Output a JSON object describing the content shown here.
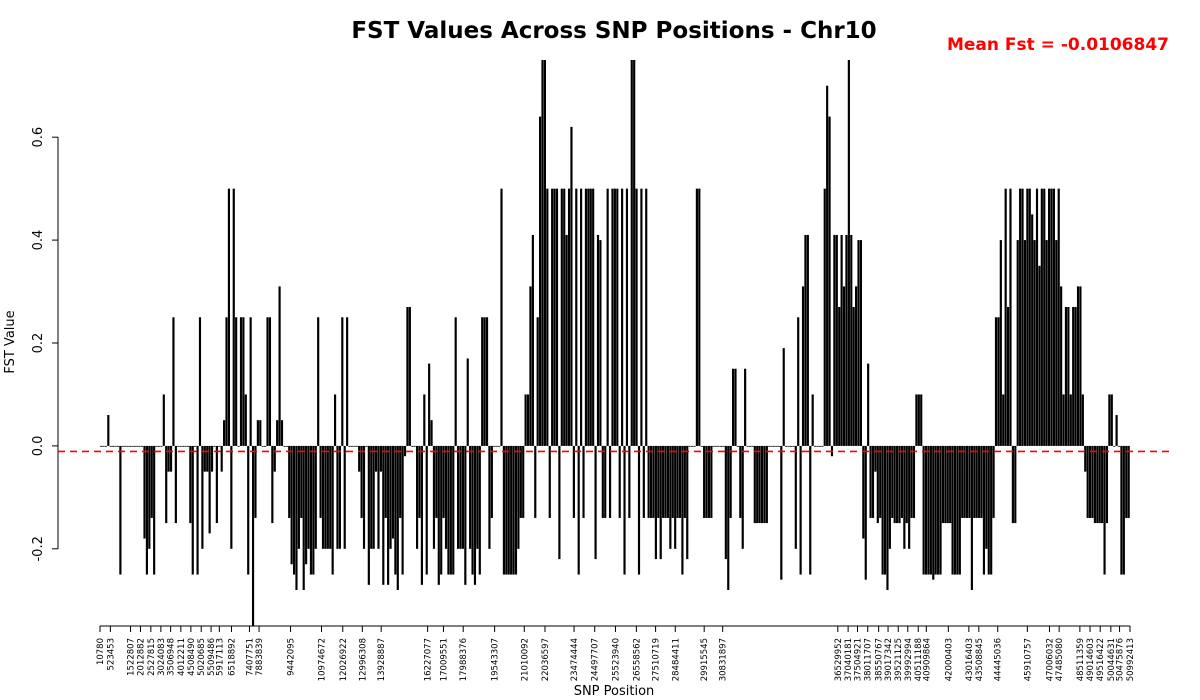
{
  "chart_data": {
    "type": "bar",
    "title": "FST Values Across SNP Positions - Chr10",
    "xlabel": "SNP Position",
    "ylabel": "FST Value",
    "ylim": [
      -0.35,
      0.75
    ],
    "yticks": [
      -0.2,
      0.0,
      0.2,
      0.4,
      0.6
    ],
    "ytick_labels": [
      "-0.2",
      "0.0",
      "0.2",
      "0.4",
      "0.6"
    ],
    "mean_fst": -0.0106847,
    "mean_label": "Mean Fst = -0.0106847",
    "mean_line_color": "#ff0000",
    "bar_color": "#000000",
    "grid": false,
    "xticks": [
      10780,
      523453,
      1522807,
      2012882,
      2527815,
      3024083,
      3506948,
      4012211,
      4508490,
      5020685,
      5509486,
      5917113,
      6518892,
      7407751,
      7883839,
      9442095,
      10974672,
      12026922,
      12996308,
      13928887,
      16227077,
      17009551,
      17988376,
      19543307,
      21010092,
      22036597,
      23474444,
      24497707,
      25523940,
      26558562,
      27510719,
      28484411,
      29915545,
      30831897,
      36529952,
      37040181,
      37504921,
      38011707,
      38550767,
      39017342,
      39521125,
      39992994,
      40511188,
      40909864,
      42000403,
      43016403,
      43508845,
      44445036,
      45910757,
      47006032,
      47485080,
      48511359,
      49014603,
      49516422,
      50044631,
      50475876,
      50992413
    ],
    "xtick_labels": [
      "10780",
      "523453",
      "1522807",
      "2012882",
      "2527815",
      "3024083",
      "3506948",
      "4012211",
      "4508490",
      "5020685",
      "5509486",
      "5917113",
      "6518892",
      "7407751",
      "7883839",
      "9442095",
      "10974672",
      "12026922",
      "12996308",
      "13928887",
      "16227077",
      "17009551",
      "17988376",
      "19543307",
      "21010092",
      "22036597",
      "23474444",
      "24497707",
      "25523940",
      "26558562",
      "27510719",
      "28484411",
      "29915545",
      "30831897",
      "36529952",
      "37040181",
      "37504921",
      "38011707",
      "38550767",
      "39017342",
      "39521125",
      "39992994",
      "40511188",
      "40909864",
      "42000403",
      "43016403",
      "43508845",
      "44445036",
      "45910757",
      "47006032",
      "47485080",
      "48511359",
      "49014603",
      "49516422",
      "50044631",
      "50475876",
      "50992413"
    ],
    "values": [
      0.0,
      0.0,
      0.0,
      0.06,
      0.0,
      0.0,
      0.0,
      0.0,
      -0.25,
      0.0,
      0.0,
      0.0,
      0.0,
      0.0,
      0.0,
      0.0,
      0.0,
      0.0,
      -0.18,
      -0.25,
      -0.2,
      -0.14,
      -0.25,
      0.0,
      0.0,
      0.0,
      0.1,
      -0.15,
      -0.05,
      -0.05,
      0.25,
      -0.15,
      0.0,
      0.0,
      0.0,
      0.0,
      0.0,
      -0.15,
      -0.25,
      0.0,
      -0.25,
      0.25,
      -0.2,
      -0.05,
      -0.05,
      -0.17,
      -0.05,
      0.0,
      -0.15,
      0.0,
      -0.05,
      0.05,
      0.25,
      0.5,
      -0.2,
      0.5,
      0.25,
      0.0,
      0.25,
      0.25,
      0.1,
      -0.25,
      0.25,
      -0.35,
      -0.14,
      0.05,
      0.05,
      0.0,
      0.0,
      0.25,
      0.25,
      -0.15,
      -0.05,
      0.05,
      0.31,
      0.05,
      0.0,
      0.0,
      -0.14,
      -0.23,
      -0.25,
      -0.28,
      -0.2,
      -0.14,
      -0.28,
      -0.23,
      -0.2,
      -0.25,
      -0.25,
      -0.2,
      0.25,
      -0.14,
      -0.2,
      -0.2,
      -0.2,
      -0.2,
      -0.25,
      0.1,
      -0.2,
      -0.2,
      0.25,
      -0.2,
      0.25,
      0.0,
      0.0,
      0.0,
      0.0,
      -0.05,
      -0.14,
      -0.2,
      0.0,
      -0.27,
      -0.2,
      -0.2,
      -0.05,
      -0.2,
      -0.05,
      -0.27,
      -0.14,
      -0.27,
      -0.2,
      -0.18,
      -0.25,
      -0.28,
      -0.14,
      -0.25,
      -0.02,
      0.27,
      0.27,
      0.0,
      0.0,
      -0.2,
      -0.14,
      -0.27,
      0.1,
      -0.25,
      0.16,
      0.05,
      -0.2,
      -0.14,
      -0.27,
      -0.25,
      -0.14,
      -0.2,
      -0.25,
      -0.25,
      -0.25,
      0.25,
      -0.2,
      -0.2,
      -0.2,
      -0.27,
      0.17,
      -0.2,
      -0.25,
      -0.27,
      -0.2,
      -0.25,
      0.25,
      0.25,
      0.25,
      -0.2,
      -0.14,
      0.0,
      0.0,
      0.0,
      0.5,
      -0.25,
      -0.25,
      -0.25,
      -0.25,
      -0.25,
      -0.25,
      -0.2,
      -0.14,
      -0.14,
      0.1,
      0.1,
      0.31,
      0.41,
      -0.14,
      0.25,
      0.64,
      0.75,
      0.75,
      0.5,
      -0.14,
      0.5,
      0.5,
      0.5,
      -0.22,
      0.5,
      0.5,
      0.41,
      0.5,
      0.62,
      -0.14,
      0.5,
      -0.25,
      0.5,
      -0.14,
      0.5,
      0.5,
      0.5,
      0.5,
      -0.22,
      0.41,
      0.4,
      -0.14,
      -0.14,
      0.5,
      -0.14,
      0.5,
      0.5,
      0.5,
      -0.14,
      0.5,
      -0.25,
      0.5,
      -0.14,
      0.75,
      0.75,
      0.5,
      -0.25,
      0.5,
      -0.14,
      0.5,
      -0.14,
      -0.14,
      -0.14,
      -0.22,
      -0.14,
      -0.22,
      -0.14,
      -0.14,
      -0.14,
      -0.2,
      -0.14,
      -0.2,
      -0.14,
      -0.14,
      -0.25,
      -0.14,
      -0.22,
      0.0,
      0.0,
      0.0,
      0.5,
      0.5,
      0.0,
      -0.14,
      -0.14,
      -0.14,
      -0.14,
      0.0,
      0.0,
      0.0,
      0.0,
      0.0,
      -0.22,
      -0.28,
      -0.14,
      0.15,
      0.15,
      0.0,
      -0.14,
      -0.2,
      0.15,
      0.0,
      0.0,
      0.0,
      -0.15,
      -0.15,
      -0.15,
      -0.15,
      -0.15,
      -0.15,
      0.0,
      0.0,
      0.0,
      0.0,
      0.0,
      -0.26,
      0.19,
      0.0,
      0.0,
      0.0,
      0.0,
      -0.2,
      0.25,
      -0.25,
      0.31,
      0.41,
      0.41,
      -0.25,
      0.1,
      0.0,
      0.0,
      0.0,
      0.0,
      0.5,
      0.7,
      0.64,
      -0.02,
      0.41,
      0.41,
      0.27,
      0.41,
      0.31,
      0.41,
      0.75,
      0.41,
      0.27,
      0.31,
      0.4,
      0.4,
      -0.18,
      -0.26,
      0.16,
      -0.14,
      -0.14,
      -0.05,
      -0.15,
      -0.14,
      -0.25,
      -0.25,
      -0.28,
      -0.2,
      -0.14,
      -0.15,
      -0.15,
      -0.15,
      -0.14,
      -0.2,
      -0.15,
      -0.2,
      -0.14,
      -0.14,
      0.1,
      0.1,
      0.1,
      -0.25,
      -0.25,
      -0.25,
      -0.25,
      -0.26,
      -0.25,
      -0.25,
      -0.25,
      -0.15,
      -0.15,
      -0.15,
      -0.15,
      -0.25,
      -0.25,
      -0.25,
      -0.25,
      -0.14,
      -0.14,
      -0.14,
      -0.14,
      -0.28,
      -0.14,
      -0.14,
      -0.14,
      -0.14,
      -0.25,
      -0.2,
      -0.25,
      -0.25,
      -0.14,
      0.25,
      0.25,
      0.4,
      0.1,
      0.5,
      0.27,
      0.5,
      -0.15,
      -0.15,
      0.4,
      0.5,
      0.5,
      0.4,
      0.5,
      0.5,
      0.45,
      0.4,
      0.5,
      0.35,
      0.5,
      0.5,
      0.4,
      0.5,
      0.5,
      0.5,
      0.4,
      0.5,
      0.31,
      0.1,
      0.27,
      0.27,
      0.1,
      0.27,
      0.27,
      0.31,
      0.31,
      0.1,
      -0.05,
      -0.14,
      -0.14,
      -0.14,
      -0.15,
      -0.15,
      -0.15,
      -0.15,
      -0.25,
      -0.15,
      0.1,
      0.1,
      0.0,
      0.06,
      0.0,
      -0.25,
      -0.25,
      -0.14,
      -0.14
    ]
  }
}
